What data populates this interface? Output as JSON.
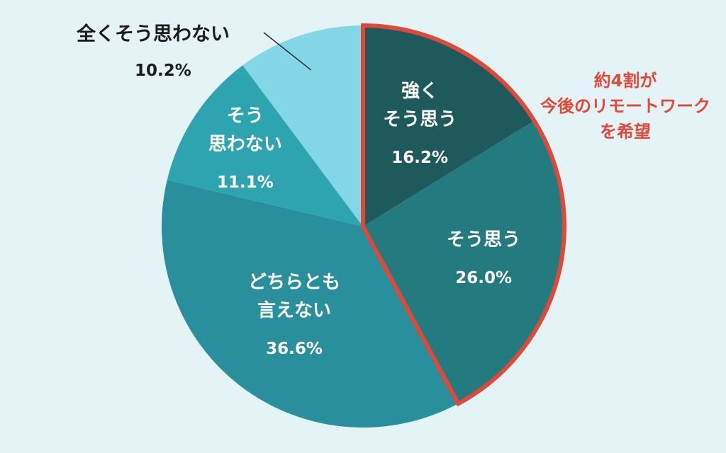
{
  "chart_data": {
    "type": "pie",
    "slices": [
      {
        "key": "strongly-agree",
        "label": "強く\nそう思う",
        "value": 16.2,
        "display": "16.2%",
        "color": "#1e5a5c",
        "text_color": "#ffffff"
      },
      {
        "key": "agree",
        "label": "そう思う",
        "value": 26.0,
        "display": "26.0%",
        "color": "#237b80",
        "text_color": "#ffffff"
      },
      {
        "key": "neutral",
        "label": "どちらとも\n言えない",
        "value": 36.6,
        "display": "36.6%",
        "color": "#2a8f9c",
        "text_color": "#ffffff"
      },
      {
        "key": "disagree",
        "label": "そう\n思わない",
        "value": 11.1,
        "display": "11.1%",
        "color": "#2fa4b1",
        "text_color": "#ffffff"
      },
      {
        "key": "strongly-disagree",
        "label": "全くそう思わない",
        "value": 10.2,
        "display": "10.2%",
        "color": "#82d6e5",
        "text_color": "#1b1b1b"
      }
    ],
    "highlight": {
      "slices": [
        "strongly-agree",
        "agree"
      ],
      "color": "#e0493a",
      "lines": [
        "約4割が",
        "今後のリモートワーク",
        "を希望"
      ]
    }
  }
}
